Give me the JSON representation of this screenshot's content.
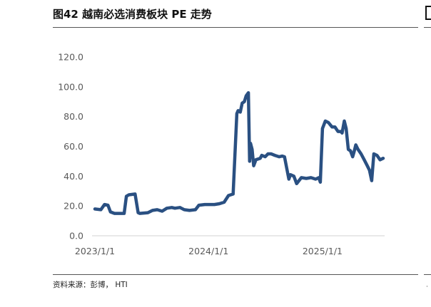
{
  "header": {
    "title": "图42 越南必选消费板块 PE 走势"
  },
  "footer": {
    "source": "资料来源：彭博， HTI"
  },
  "chart_data": {
    "type": "line",
    "title": "图42 越南必选消费板块 PE 走势",
    "xlabel": "",
    "ylabel": "",
    "ylim": [
      0,
      120
    ],
    "yticks": [
      "0.0",
      "20.0",
      "40.0",
      "60.0",
      "80.0",
      "100.0",
      "120.0"
    ],
    "xticks": [
      "2023/1/1",
      "2024/1/1",
      "2025/1/1"
    ],
    "xlim": [
      "2023-01-01",
      "2025-07-15"
    ],
    "grid": false,
    "legend": "none",
    "line_color": "#2a5082",
    "series": [
      {
        "x": [
          "2023-01-01",
          "2023-01-20",
          "2023-02-01",
          "2023-02-12",
          "2023-02-20",
          "2023-03-05",
          "2023-03-20",
          "2023-04-05",
          "2023-04-12",
          "2023-04-20",
          "2023-05-10",
          "2023-05-20",
          "2023-05-25",
          "2023-06-20",
          "2023-07-05",
          "2023-07-20",
          "2023-08-05",
          "2023-08-20",
          "2023-09-05",
          "2023-09-15",
          "2023-10-01",
          "2023-10-15",
          "2023-11-01",
          "2023-11-20",
          "2023-12-01",
          "2023-12-20",
          "2024-01-05",
          "2024-01-20",
          "2024-02-05",
          "2024-02-20",
          "2024-03-05",
          "2024-03-20",
          "2024-04-01",
          "2024-04-05",
          "2024-04-12",
          "2024-04-18",
          "2024-04-25",
          "2024-05-01",
          "2024-05-08",
          "2024-05-12",
          "2024-05-15",
          "2024-05-20",
          "2024-05-25",
          "2024-06-01",
          "2024-06-15",
          "2024-06-20",
          "2024-07-01",
          "2024-07-10",
          "2024-07-20",
          "2024-08-01",
          "2024-08-15",
          "2024-08-25",
          "2024-09-01",
          "2024-09-15",
          "2024-09-20",
          "2024-10-01",
          "2024-10-10",
          "2024-10-25",
          "2024-11-10",
          "2024-11-25",
          "2024-12-10",
          "2024-12-20",
          "2024-12-25",
          "2025-01-01",
          "2025-01-10",
          "2025-01-20",
          "2025-02-01",
          "2025-02-10",
          "2025-02-20",
          "2025-03-01",
          "2025-03-05",
          "2025-03-12",
          "2025-03-18",
          "2025-03-25",
          "2025-04-01",
          "2025-04-08",
          "2025-04-12",
          "2025-04-18",
          "2025-04-25",
          "2025-05-05",
          "2025-05-15",
          "2025-05-25",
          "2025-06-01",
          "2025-06-08",
          "2025-06-15",
          "2025-06-25",
          "2025-07-05",
          "2025-07-15"
        ],
        "y": [
          18,
          17.5,
          21,
          20.5,
          16,
          15,
          15,
          15,
          26.5,
          27.5,
          28,
          15.5,
          15,
          15.5,
          17,
          17.5,
          16.5,
          18.5,
          19,
          18.5,
          19,
          17.5,
          17,
          17.5,
          20.5,
          21,
          21,
          21,
          21.5,
          22.5,
          27,
          28,
          82,
          84,
          83,
          89,
          90,
          94,
          96,
          50,
          62,
          58,
          47,
          51,
          52,
          54,
          53,
          55,
          55,
          54,
          53,
          53.5,
          53,
          38,
          41,
          40,
          35,
          39,
          38.5,
          39,
          38,
          39,
          36,
          72,
          77,
          76,
          73,
          73,
          70,
          70,
          69,
          77,
          72,
          58,
          57,
          53,
          56,
          61,
          58,
          55,
          51,
          47,
          44,
          37,
          55,
          54,
          51,
          52
        ]
      }
    ]
  }
}
